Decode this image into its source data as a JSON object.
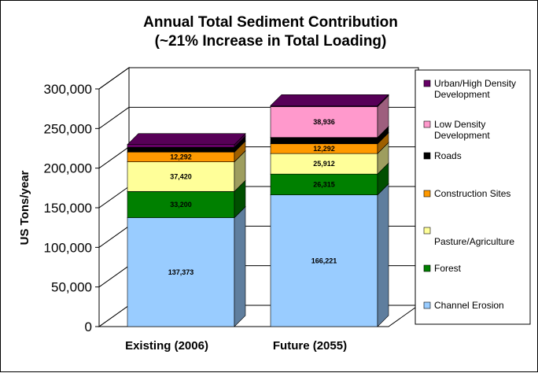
{
  "chart_data": {
    "type": "bar",
    "stacked": true,
    "three_d": true,
    "title": "Annual Total Sediment Contribution",
    "subtitle": "(~21% Increase in Total Loading)",
    "xlabel": "",
    "ylabel": "US Tons/year",
    "ylim": [
      0,
      300000
    ],
    "ytick_step": 50000,
    "yticks": [
      "0",
      "50,000",
      "100,000",
      "150,000",
      "200,000",
      "250,000",
      "300,000"
    ],
    "grid": true,
    "legend_position": "right",
    "categories": [
      "Existing (2006)",
      "Future (2055)"
    ],
    "series": [
      {
        "name": "Channel Erosion",
        "color": "#99ccff",
        "values": [
          137373,
          166221
        ],
        "labels": [
          "137,373",
          "166,221"
        ]
      },
      {
        "name": "Forest",
        "color": "#008000",
        "values": [
          33200,
          26315
        ],
        "labels": [
          "33,200",
          "26,315"
        ]
      },
      {
        "name": "Pasture/Agriculture",
        "color": "#ffff99",
        "values": [
          37420,
          25912
        ],
        "labels": [
          "37,420",
          "25,912"
        ]
      },
      {
        "name": "Construction Sites",
        "color": "#ff9900",
        "values": [
          12292,
          12292
        ],
        "labels": [
          "12,292",
          "12,292"
        ]
      },
      {
        "name": "Roads",
        "color": "#000000",
        "values": [
          6000,
          8000
        ],
        "labels": [
          "",
          ""
        ]
      },
      {
        "name": "Low Density Development",
        "color": "#ff99cc",
        "values": [
          0,
          38936
        ],
        "labels": [
          "",
          "38,936"
        ]
      },
      {
        "name": "Urban/High Density Development",
        "color": "#660066",
        "values": [
          3500,
          1200
        ],
        "labels": [
          "",
          ""
        ]
      }
    ],
    "legend_order": [
      "Urban/High Density Development",
      "Low Density Development",
      "Roads",
      "Construction Sites",
      "Pasture/Agriculture",
      "Forest",
      "Channel Erosion"
    ]
  }
}
